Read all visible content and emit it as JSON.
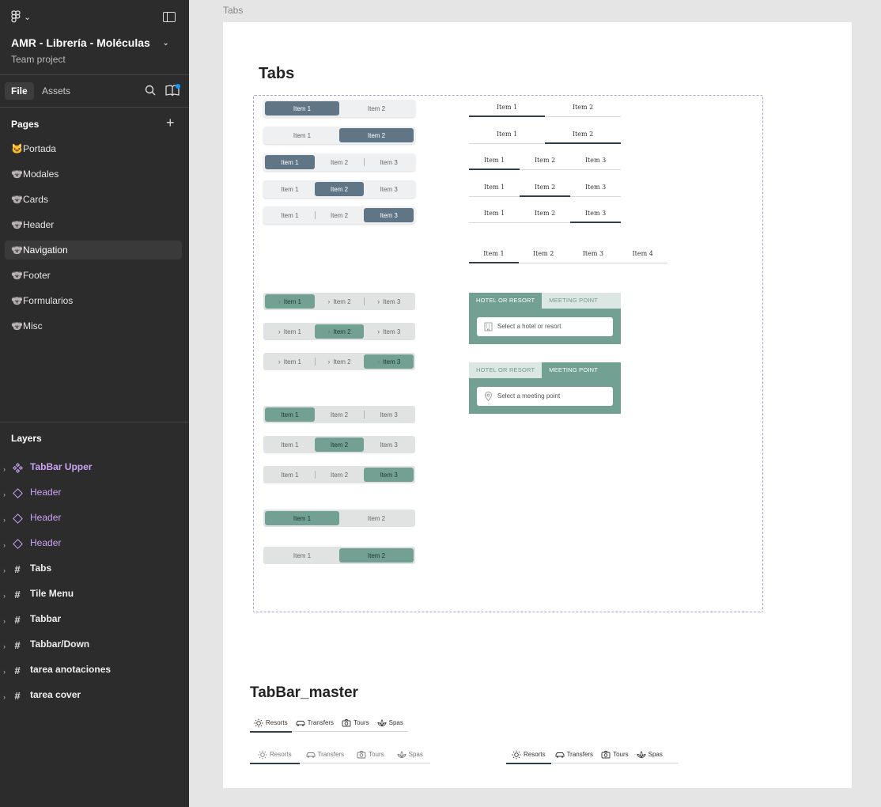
{
  "sidebar": {
    "project_title": "AMR - Librería - Moléculas",
    "project_subtitle": "Team project",
    "tabs": {
      "file": "File",
      "assets": "Assets"
    },
    "pages_heading": "Pages",
    "pages": [
      {
        "label": "🐱Portada"
      },
      {
        "label": "🐨Modales"
      },
      {
        "label": "🐨Cards"
      },
      {
        "label": "🐨Header"
      },
      {
        "label": "🐨Navigation"
      },
      {
        "label": "🐨Footer"
      },
      {
        "label": "🐨Formularios"
      },
      {
        "label": "🐨Misc"
      }
    ],
    "layers_heading": "Layers",
    "layers": [
      {
        "label": "TabBar Upper",
        "icon": "component-master-icon"
      },
      {
        "label": "Header",
        "icon": "component-instance-icon"
      },
      {
        "label": "Header",
        "icon": "component-instance-icon"
      },
      {
        "label": "Header",
        "icon": "component-instance-icon"
      },
      {
        "label": "Tabs",
        "icon": "frame-icon"
      },
      {
        "label": "Tile Menu",
        "icon": "frame-icon"
      },
      {
        "label": "Tabbar",
        "icon": "frame-icon"
      },
      {
        "label": "Tabbar/Down",
        "icon": "frame-icon"
      },
      {
        "label": "tarea anotaciones",
        "icon": "frame-icon"
      },
      {
        "label": "tarea cover",
        "icon": "frame-icon"
      }
    ]
  },
  "canvas": {
    "frame_label": "Tabs",
    "tabs_heading": "Tabs",
    "master_heading": "TabBar_master",
    "items": {
      "i1": "Item 1",
      "i2": "Item 2",
      "i3": "Item 3",
      "i4": "Item 4"
    },
    "widget": {
      "tab_hotel": "HOTEL OR RESORT",
      "tab_meeting": "MEETING POINT",
      "placeholder_hotel": "Select a hotel or resort",
      "placeholder_meeting": "Select a meeting point"
    },
    "tabbar": {
      "resorts": "Resorts",
      "transfers": "Transfers",
      "tours": "Tours",
      "spas": "Spas"
    }
  },
  "colors": {
    "slate_active": "#607686",
    "green_active": "#72a092",
    "underline": "#2e3f4b",
    "component_purple": "#c9a4f5"
  }
}
